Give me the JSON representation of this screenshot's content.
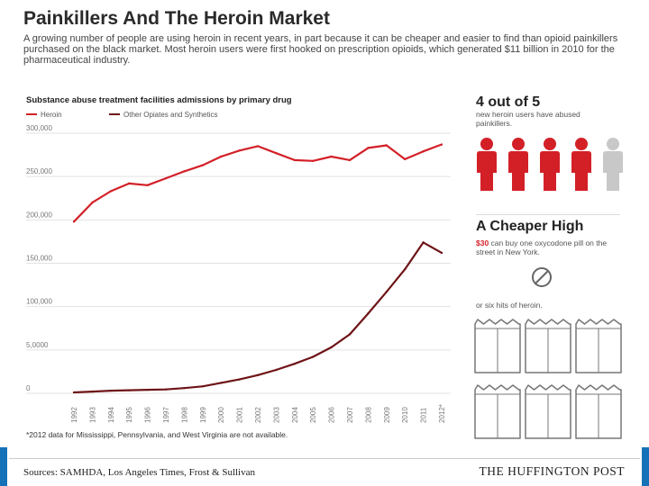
{
  "header": {
    "title": "Painkillers And The Heroin Market",
    "intro": "A growing number of people are using heroin in recent years, in part because it can be cheaper and easier to find than opioid painkillers purchased on the black market. Most heroin users were first hooked on prescription opioids, which generated $11 billion in 2010 for the pharmaceutical industry."
  },
  "chart_data": {
    "type": "line",
    "title": "Substance abuse treatment facilities admissions by primary drug",
    "x": [
      "1992",
      "1993",
      "1994",
      "1995",
      "1996",
      "1997",
      "1998",
      "1999",
      "2000",
      "2001",
      "2002",
      "2003",
      "2004",
      "2005",
      "2006",
      "2007",
      "2008",
      "2009",
      "2010",
      "2011",
      "2012*"
    ],
    "series": [
      {
        "name": "Heroin",
        "color": "#d32027",
        "values": [
          198000,
          220000,
          233000,
          242000,
          240000,
          248000,
          256000,
          263000,
          273000,
          280000,
          285000,
          277000,
          269000,
          268000,
          273000,
          269000,
          283000,
          286000,
          270000,
          279000,
          287000
        ]
      },
      {
        "name": "Other Opiates and Synthetics",
        "color": "#6e1417",
        "values": [
          1000,
          2000,
          3000,
          3500,
          4000,
          4500,
          6000,
          8000,
          12000,
          16000,
          21000,
          27000,
          34000,
          42000,
          53000,
          68000,
          92000,
          117000,
          143000,
          174000,
          162000
        ]
      }
    ],
    "yticks": [
      "300,000",
      "250,000",
      "200,000",
      "150,000",
      "100,000",
      "5,0000",
      "0"
    ],
    "ylim": [
      0,
      300000
    ],
    "grid": true,
    "legend": "top-left"
  },
  "footnote": "*2012 data for Mississippi, Pennsylvania, and West Virginia are not available.",
  "sidebar": {
    "stat": {
      "headline": "4 out of 5",
      "caption": "new heroin users have abused painkillers.",
      "highlighted_count": 4,
      "total_count": 5,
      "highlight_color": "#d32027",
      "muted_color": "#c8c8c8"
    },
    "cheaper": {
      "headline": "A Cheaper High",
      "price": "$30",
      "caption_rest": " can buy one oxycodone pill on the street in New York.",
      "heroin_caption": "or six hits of heroin.",
      "bag_count": 6
    }
  },
  "footer": {
    "sources": "Sources: SAMHDA, Los Angeles Times, Frost & Sullivan",
    "brand": "THE HUFFINGTON POST",
    "band_color": "#1572b8"
  }
}
